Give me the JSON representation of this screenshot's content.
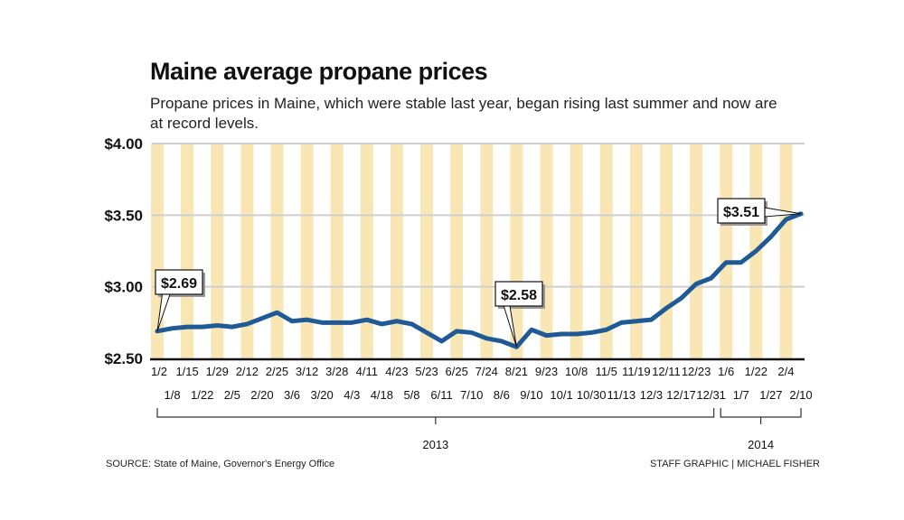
{
  "chart_data": {
    "type": "line",
    "title": "Maine average propane prices",
    "subtitle": "Propane prices in Maine, which were stable last year, began rising last summer and now are at record levels.",
    "xlabel": "",
    "ylabel": "",
    "ylim": [
      2.5,
      4.0
    ],
    "yticks": [
      {
        "value": 2.5,
        "label": "$2.50"
      },
      {
        "value": 3.0,
        "label": "$3.00"
      },
      {
        "value": 3.5,
        "label": "$3.50"
      },
      {
        "value": 4.0,
        "label": "$4.00"
      }
    ],
    "grid": true,
    "x": [
      "1/2",
      "1/8",
      "1/15",
      "1/22",
      "1/29",
      "2/5",
      "2/12",
      "2/20",
      "2/25",
      "3/6",
      "3/12",
      "3/20",
      "3/28",
      "4/3",
      "4/11",
      "4/18",
      "4/23",
      "5/8",
      "5/23",
      "6/11",
      "6/25",
      "7/10",
      "7/24",
      "8/6",
      "8/21",
      "9/10",
      "9/23",
      "10/1",
      "10/8",
      "10/30",
      "11/5",
      "11/13",
      "11/19",
      "12/3",
      "12/11",
      "12/17",
      "12/23",
      "12/31",
      "1/6",
      "1/7",
      "1/22",
      "1/27",
      "2/4",
      "2/10"
    ],
    "series": [
      {
        "name": "Average propane price",
        "color": "#1f5a96",
        "values": [
          2.69,
          2.71,
          2.72,
          2.72,
          2.73,
          2.72,
          2.74,
          2.78,
          2.82,
          2.76,
          2.77,
          2.75,
          2.75,
          2.75,
          2.77,
          2.74,
          2.76,
          2.74,
          2.68,
          2.62,
          2.69,
          2.68,
          2.64,
          2.62,
          2.58,
          2.7,
          2.66,
          2.67,
          2.67,
          2.68,
          2.7,
          2.75,
          2.76,
          2.77,
          2.85,
          2.92,
          3.02,
          3.06,
          3.17,
          3.17,
          3.25,
          3.35,
          3.47,
          3.51
        ]
      }
    ],
    "annotations": [
      {
        "index": 0,
        "label": "$2.69"
      },
      {
        "index": 24,
        "label": "$2.58"
      },
      {
        "index": 43,
        "label": "$3.51"
      }
    ],
    "year_groups": [
      {
        "label": "2013",
        "from": 0,
        "to": 37
      },
      {
        "label": "2014",
        "from": 38,
        "to": 43
      }
    ],
    "band_color": "#f8e6b4"
  },
  "footer": {
    "source": "SOURCE: State of Maine, Governor's Energy Office",
    "credit": "STAFF GRAPHIC | MICHAEL FISHER"
  }
}
